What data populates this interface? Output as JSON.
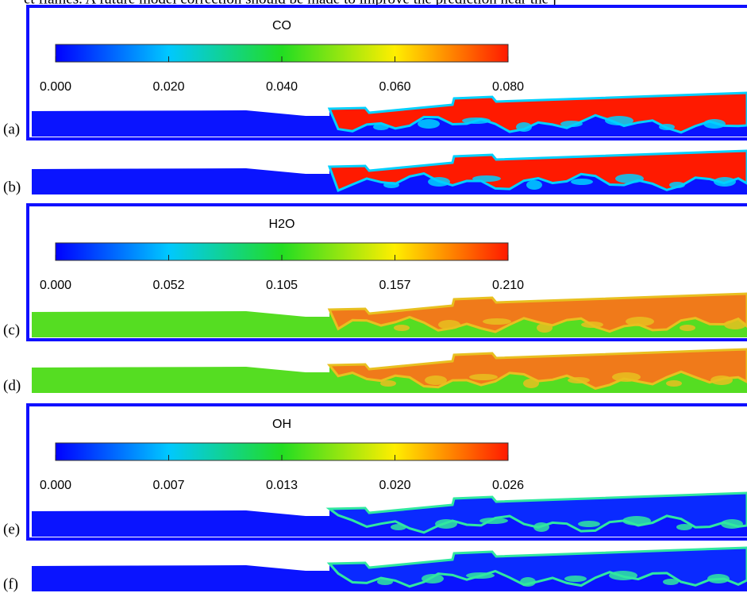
{
  "header_text": "et flames. A future model correction should be made to improve the prediction near the j",
  "panels": [
    {
      "label": "(a)",
      "colorbar": {
        "title": "CO",
        "ticks": [
          "0.000",
          "0.020",
          "0.040",
          "0.060",
          "0.080"
        ]
      }
    },
    {
      "label": "(b)"
    },
    {
      "label": "(c)",
      "colorbar": {
        "title": "H2O",
        "ticks": [
          "0.000",
          "0.052",
          "0.105",
          "0.157",
          "0.210"
        ]
      }
    },
    {
      "label": "(d)"
    },
    {
      "label": "(e)",
      "colorbar": {
        "title": "OH",
        "ticks": [
          "0.000",
          "0.007",
          "0.013",
          "0.020",
          "0.026"
        ]
      }
    },
    {
      "label": "(f)"
    }
  ]
}
